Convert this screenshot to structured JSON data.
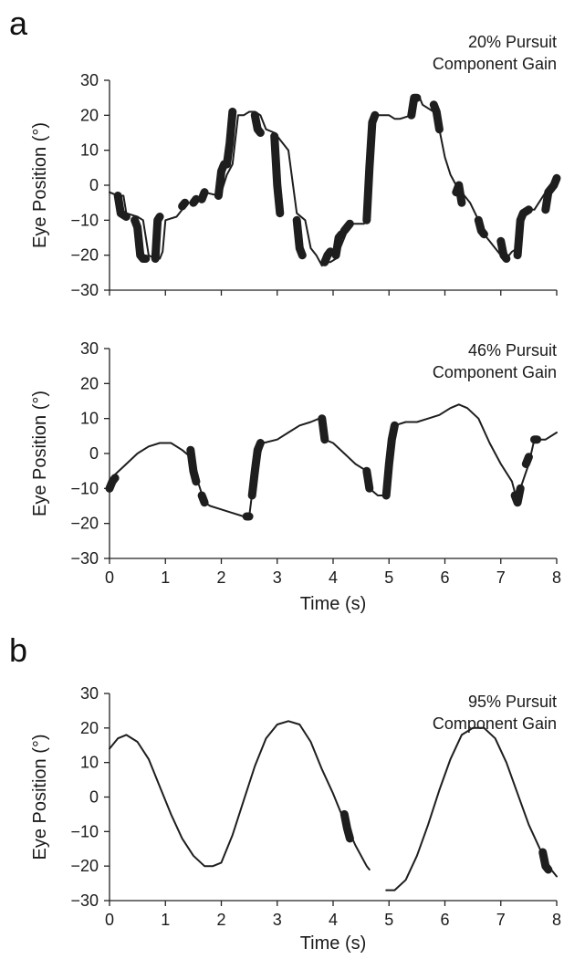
{
  "panel_letters": {
    "a": "a",
    "b": "b"
  },
  "colors": {
    "trace": "#1e1e1e",
    "axis": "#222222",
    "background": "#ffffff"
  },
  "chart_data": [
    {
      "type": "line",
      "panel": "a",
      "annotation": [
        "20% Pursuit",
        "Component Gain"
      ],
      "ylabel": "Eye Position (°)",
      "xlabel": "",
      "xlim": [
        0,
        8
      ],
      "ylim": [
        -30,
        30
      ],
      "yticks": [
        "30",
        "20",
        "10",
        "0",
        "−10",
        "−20",
        "−30"
      ],
      "xticks": [],
      "series": [
        {
          "x": [
            0.0,
            0.15,
            0.25,
            0.3,
            0.5,
            0.6,
            0.7,
            0.82,
            0.9,
            0.95,
            1.0,
            1.2,
            1.3,
            1.4,
            1.5,
            1.55,
            1.6,
            1.65,
            1.7,
            1.95,
            2.0,
            2.1,
            2.2,
            2.3,
            2.4,
            2.5,
            2.6,
            2.7,
            2.8,
            2.95,
            3.0,
            3.1,
            3.2,
            3.35,
            3.5,
            3.6,
            3.7,
            3.8,
            3.85,
            3.95,
            4.05,
            4.1,
            4.2,
            4.3,
            4.45,
            4.55,
            4.62,
            4.7,
            4.9,
            5.0,
            5.1,
            5.2,
            5.4,
            5.5,
            5.55,
            5.6,
            5.7,
            5.8,
            5.9,
            6.0,
            6.1,
            6.2,
            6.3,
            6.45,
            6.6,
            6.7,
            6.8,
            6.9,
            7.0,
            7.1,
            7.2,
            7.3,
            7.4,
            7.5,
            7.6,
            7.8,
            7.9,
            8.0
          ],
          "y": [
            -2,
            -3,
            -3,
            -8,
            -9,
            -10,
            -20,
            -21,
            -21,
            -19,
            -10,
            -9,
            -7,
            -5,
            -5,
            -4,
            -4,
            -3,
            -2,
            -3,
            -2,
            3,
            6,
            20,
            20,
            21,
            21,
            20,
            16,
            15,
            14,
            12,
            10,
            -8,
            -10,
            -18,
            -20,
            -23,
            -22,
            -22,
            -21,
            -19,
            -15,
            -11,
            -11,
            -11,
            -10,
            20,
            20,
            20,
            19,
            19,
            20,
            25,
            25,
            23,
            22,
            21,
            16,
            8,
            3,
            0,
            -2,
            -5,
            -10,
            -14,
            -16,
            -18,
            -20,
            -21,
            -19,
            -18,
            -8,
            -7,
            -7,
            -2,
            0,
            1
          ]
        }
      ],
      "saccades": [
        {
          "x": [
            0.15,
            0.2,
            0.3
          ],
          "y": [
            -3,
            -8,
            -9
          ]
        },
        {
          "x": [
            0.45,
            0.5,
            0.55,
            0.6,
            0.65
          ],
          "y": [
            -10,
            -12,
            -20,
            -21,
            -21
          ]
        },
        {
          "x": [
            0.82,
            0.86,
            0.9
          ],
          "y": [
            -21,
            -10,
            -9
          ]
        },
        {
          "x": [
            1.3,
            1.35
          ],
          "y": [
            -6,
            -5
          ]
        },
        {
          "x": [
            1.5,
            1.55
          ],
          "y": [
            -5,
            -4
          ]
        },
        {
          "x": [
            1.65,
            1.7
          ],
          "y": [
            -4,
            -2
          ]
        },
        {
          "x": [
            1.95,
            2.0,
            2.05
          ],
          "y": [
            -3,
            4,
            6
          ]
        },
        {
          "x": [
            2.1,
            2.15,
            2.2
          ],
          "y": [
            6,
            12,
            21
          ]
        },
        {
          "x": [
            2.6,
            2.65,
            2.7
          ],
          "y": [
            20,
            16,
            15
          ]
        },
        {
          "x": [
            2.95,
            3.0,
            3.05
          ],
          "y": [
            14,
            0,
            -8
          ]
        },
        {
          "x": [
            3.35,
            3.4,
            3.45
          ],
          "y": [
            -10,
            -18,
            -20
          ]
        },
        {
          "x": [
            3.85,
            3.9,
            3.95
          ],
          "y": [
            -22,
            -20,
            -19
          ]
        },
        {
          "x": [
            4.05,
            4.1,
            4.15
          ],
          "y": [
            -20,
            -15,
            -14
          ]
        },
        {
          "x": [
            4.2,
            4.3
          ],
          "y": [
            -13,
            -11
          ]
        },
        {
          "x": [
            4.6,
            4.65,
            4.7,
            4.75
          ],
          "y": [
            -10,
            5,
            18,
            20
          ]
        },
        {
          "x": [
            5.4,
            5.45,
            5.5
          ],
          "y": [
            20,
            25,
            25
          ]
        },
        {
          "x": [
            5.8,
            5.85,
            5.9
          ],
          "y": [
            23,
            21,
            16
          ]
        },
        {
          "x": [
            6.2,
            6.25,
            6.3
          ],
          "y": [
            -2,
            0,
            -5
          ]
        },
        {
          "x": [
            6.6,
            6.65,
            6.7
          ],
          "y": [
            -10,
            -13,
            -14
          ]
        },
        {
          "x": [
            7.0,
            7.05,
            7.1
          ],
          "y": [
            -16,
            -20,
            -21
          ]
        },
        {
          "x": [
            7.3,
            7.35,
            7.4,
            7.5
          ],
          "y": [
            -20,
            -10,
            -8,
            -7
          ]
        },
        {
          "x": [
            7.8,
            7.85,
            7.95,
            8.0
          ],
          "y": [
            -7,
            -2,
            0,
            2
          ]
        }
      ]
    },
    {
      "type": "line",
      "panel": "a",
      "annotation": [
        "46% Pursuit",
        "Component Gain"
      ],
      "ylabel": "Eye Position (°)",
      "xlabel": "Time (s)",
      "xlim": [
        0,
        8
      ],
      "ylim": [
        -30,
        30
      ],
      "yticks": [
        "30",
        "20",
        "10",
        "0",
        "−10",
        "−20",
        "−30"
      ],
      "xticks": [
        "0",
        "1",
        "2",
        "3",
        "4",
        "5",
        "6",
        "7",
        "8"
      ],
      "series": [
        {
          "x": [
            0.0,
            0.1,
            0.3,
            0.5,
            0.7,
            0.9,
            1.1,
            1.3,
            1.45,
            1.5,
            1.55,
            1.6,
            1.7,
            1.8,
            2.0,
            2.2,
            2.4,
            2.5,
            2.6,
            2.75,
            3.0,
            3.2,
            3.4,
            3.6,
            3.75,
            3.8,
            3.85,
            4.0,
            4.2,
            4.4,
            4.6,
            4.65,
            4.8,
            5.0,
            5.1,
            5.3,
            5.5,
            5.7,
            5.9,
            6.1,
            6.25,
            6.4,
            6.6,
            6.8,
            7.0,
            7.2,
            7.3,
            7.35,
            7.5,
            7.6,
            7.7,
            7.8,
            8.0
          ],
          "y": [
            -9,
            -6,
            -3,
            0,
            2,
            3,
            3,
            1,
            -1,
            1,
            -8,
            -9,
            -14,
            -15,
            -16,
            -17,
            -18,
            -18,
            -5,
            3,
            4,
            6,
            8,
            9,
            10,
            10,
            4,
            3,
            0,
            -3,
            -5,
            -10,
            -12,
            -12,
            8,
            9,
            9,
            10,
            11,
            13,
            14,
            13,
            10,
            3,
            -3,
            -8,
            -14,
            -10,
            -3,
            4,
            4,
            4,
            6
          ]
        }
      ],
      "saccades": [
        {
          "x": [
            0.0,
            0.05,
            0.1
          ],
          "y": [
            -10,
            -8,
            -7
          ]
        },
        {
          "x": [
            1.45,
            1.5,
            1.55
          ],
          "y": [
            1,
            -5,
            -8
          ]
        },
        {
          "x": [
            1.65,
            1.7
          ],
          "y": [
            -12,
            -14
          ]
        },
        {
          "x": [
            2.45,
            2.5
          ],
          "y": [
            -18,
            -18
          ]
        },
        {
          "x": [
            2.55,
            2.6,
            2.65,
            2.7
          ],
          "y": [
            -12,
            -5,
            1,
            3
          ]
        },
        {
          "x": [
            3.8,
            3.85
          ],
          "y": [
            10,
            4
          ]
        },
        {
          "x": [
            4.6,
            4.65
          ],
          "y": [
            -5,
            -10
          ]
        },
        {
          "x": [
            4.95,
            5.0,
            5.05,
            5.1
          ],
          "y": [
            -12,
            -3,
            4,
            8
          ]
        },
        {
          "x": [
            7.25,
            7.3,
            7.35
          ],
          "y": [
            -12,
            -14,
            -10
          ]
        },
        {
          "x": [
            7.45,
            7.5
          ],
          "y": [
            -3,
            -1
          ]
        },
        {
          "x": [
            7.6,
            7.65
          ],
          "y": [
            4,
            4
          ]
        }
      ]
    },
    {
      "type": "line",
      "panel": "b",
      "annotation": [
        "95% Pursuit",
        "Component Gain"
      ],
      "ylabel": "Eye Position (°)",
      "xlabel": "Time (s)",
      "xlim": [
        0,
        8
      ],
      "ylim": [
        -30,
        30
      ],
      "yticks": [
        "30",
        "20",
        "10",
        "0",
        "−10",
        "−20",
        "−30"
      ],
      "xticks": [
        "0",
        "1",
        "2",
        "3",
        "4",
        "5",
        "6",
        "7",
        "8"
      ],
      "series": [
        {
          "x": [
            0.0,
            0.15,
            0.3,
            0.5,
            0.7,
            0.9,
            1.1,
            1.3,
            1.5,
            1.7,
            1.85,
            2.0,
            2.2,
            2.4,
            2.6,
            2.8,
            3.0,
            3.2,
            3.4,
            3.6,
            3.8,
            4.0,
            4.2,
            4.4,
            4.6,
            4.65
          ],
          "y": [
            14,
            17,
            18,
            16,
            11,
            3,
            -5,
            -12,
            -17,
            -20,
            -20,
            -19,
            -11,
            -1,
            9,
            17,
            21,
            22,
            21,
            16,
            8,
            1,
            -7,
            -14,
            -20,
            -21
          ]
        },
        {
          "x": [
            4.95,
            5.1,
            5.3,
            5.5,
            5.7,
            5.9,
            6.1,
            6.3,
            6.5,
            6.7,
            6.9,
            7.1,
            7.3,
            7.5,
            7.7,
            7.9,
            8.0
          ],
          "y": [
            -27,
            -27,
            -24,
            -17,
            -8,
            2,
            11,
            18,
            20,
            20,
            17,
            10,
            1,
            -8,
            -15,
            -21,
            -23
          ]
        }
      ],
      "saccades": [
        {
          "x": [
            4.2,
            4.25,
            4.3
          ],
          "y": [
            -5,
            -9,
            -12
          ]
        },
        {
          "x": [
            7.75,
            7.8,
            7.85
          ],
          "y": [
            -16,
            -20,
            -21
          ]
        }
      ]
    }
  ]
}
